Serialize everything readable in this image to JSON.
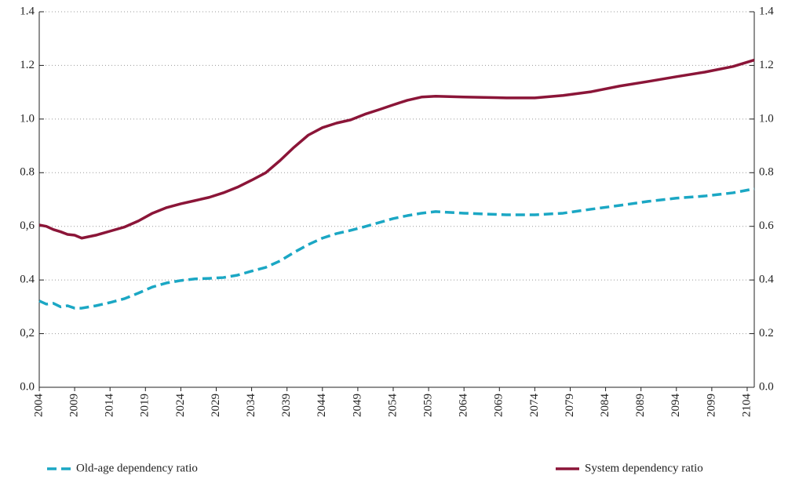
{
  "chart_data": {
    "type": "line",
    "x": [
      2004,
      2005,
      2006,
      2007,
      2008,
      2009,
      2010,
      2012,
      2014,
      2016,
      2018,
      2020,
      2022,
      2024,
      2026,
      2028,
      2030,
      2032,
      2034,
      2036,
      2038,
      2040,
      2042,
      2044,
      2046,
      2048,
      2050,
      2052,
      2054,
      2056,
      2058,
      2060,
      2064,
      2070,
      2074,
      2078,
      2082,
      2086,
      2090,
      2094,
      2098,
      2102,
      2105
    ],
    "series": [
      {
        "name": "Old-age dependency ratio",
        "color": "#1ba7c4",
        "dashed": true,
        "values": [
          0.322,
          0.31,
          0.313,
          0.3,
          0.304,
          0.295,
          0.295,
          0.304,
          0.316,
          0.33,
          0.351,
          0.374,
          0.389,
          0.398,
          0.404,
          0.406,
          0.409,
          0.418,
          0.433,
          0.447,
          0.471,
          0.503,
          0.532,
          0.556,
          0.573,
          0.585,
          0.599,
          0.614,
          0.629,
          0.64,
          0.649,
          0.655,
          0.649,
          0.643,
          0.643,
          0.649,
          0.664,
          0.678,
          0.693,
          0.705,
          0.713,
          0.725,
          0.74
        ]
      },
      {
        "name": "System dependency ratio",
        "color": "#8b1538",
        "dashed": false,
        "values": [
          0.605,
          0.6,
          0.588,
          0.58,
          0.57,
          0.567,
          0.556,
          0.567,
          0.582,
          0.597,
          0.62,
          0.649,
          0.67,
          0.684,
          0.696,
          0.708,
          0.725,
          0.746,
          0.772,
          0.8,
          0.845,
          0.895,
          0.94,
          0.968,
          0.985,
          0.997,
          1.018,
          1.035,
          1.053,
          1.07,
          1.082,
          1.085,
          1.082,
          1.079,
          1.079,
          1.088,
          1.102,
          1.123,
          1.14,
          1.158,
          1.175,
          1.196,
          1.22
        ]
      }
    ],
    "xlim": [
      2004,
      2105
    ],
    "xticks": [
      2004,
      2009,
      2014,
      2019,
      2024,
      2029,
      2034,
      2039,
      2044,
      2049,
      2054,
      2059,
      2064,
      2069,
      2074,
      2079,
      2084,
      2089,
      2094,
      2099,
      2104
    ],
    "ylim": [
      0,
      1.4
    ],
    "yticks": [
      {
        "value": 0,
        "label": "0.0"
      },
      {
        "value": 0.2,
        "label": "0,2"
      },
      0.4,
      {
        "value": 0.6,
        "label": "0,6"
      },
      0.8,
      {
        "value": 1,
        "label": "1.0"
      },
      1.2,
      1.4
    ],
    "y2lim": [
      0,
      1.4
    ],
    "y2ticks": [
      {
        "value": 0,
        "label": "0.0"
      },
      0.2,
      0.4,
      0.6,
      0.8,
      {
        "value": 1,
        "label": "1.0"
      },
      1.2,
      1.4
    ],
    "grid": true
  }
}
